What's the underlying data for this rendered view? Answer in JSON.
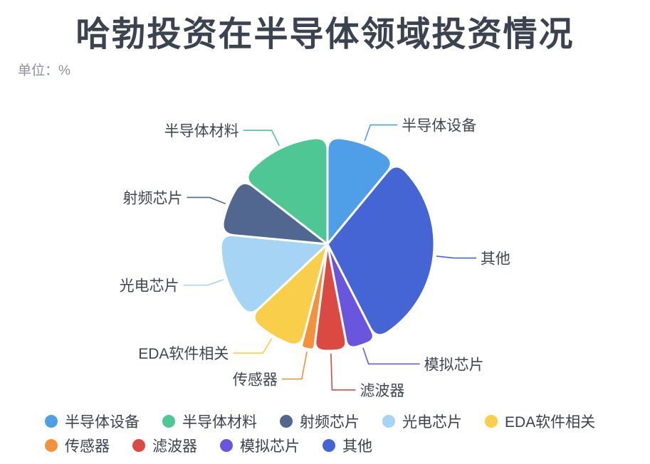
{
  "header": {
    "title": "哈勃投资在半导体领域投资情况",
    "unit_label": "单位：%"
  },
  "chart_data": {
    "type": "pie",
    "title": "哈勃投资在半导体领域投资情况",
    "unit": "%",
    "start_angle": "12 o'clock, clockwise",
    "categories": [
      "半导体设备",
      "其他",
      "模拟芯片",
      "滤波器",
      "传感器",
      "EDA软件相关",
      "光电芯片",
      "射频芯片",
      "半导体材料"
    ],
    "keys": [
      "semiconductor-equipment",
      "others",
      "analog-chips",
      "filters",
      "sensors",
      "eda-software",
      "optoelectronic-chips",
      "rf-chips",
      "semiconductor-materials"
    ],
    "values": [
      11,
      31.5,
      4.5,
      5,
      2,
      9,
      13.5,
      9,
      14.5
    ],
    "colors": [
      "#4F9FE8",
      "#4565D5",
      "#6A56DE",
      "#DB4A42",
      "#F4913C",
      "#F8CE4A",
      "#A5D4F4",
      "#51678F",
      "#4EC795"
    ],
    "legend_position": "bottom",
    "data_labels": "category names shown via colored leader lines; numeric values not displayed",
    "note": "values are percentage shares estimated from slice arc angles"
  },
  "legend": {
    "rows": [
      [
        "半导体设备",
        "半导体材料",
        "射频芯片",
        "光电芯片",
        "EDA软件相关"
      ],
      [
        "传感器",
        "滤波器",
        "模拟芯片",
        "其他"
      ]
    ]
  }
}
